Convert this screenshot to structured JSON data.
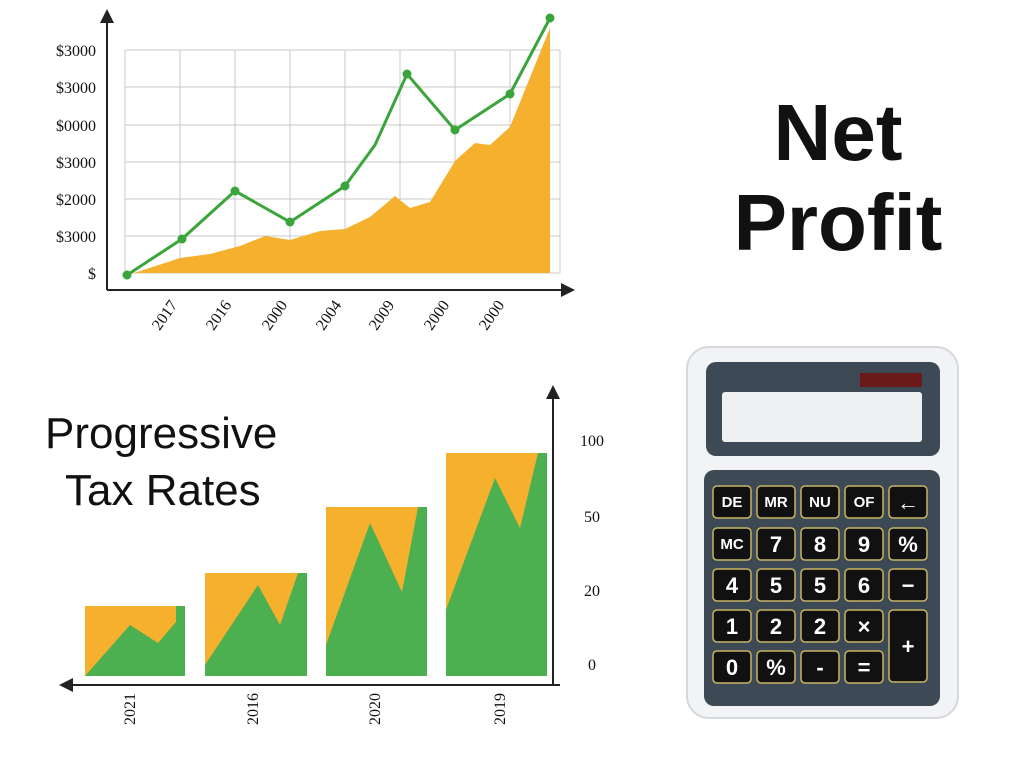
{
  "line_chart": {
    "y_labels": [
      "$3000",
      "$3000",
      "$0000",
      "$3000",
      "$2000",
      "$3000",
      "$"
    ],
    "x_labels": [
      "2017",
      "2016",
      "2000",
      "2004",
      "2009",
      "2000",
      "2000"
    ]
  },
  "net_profit": {
    "lines": [
      "Net",
      "Profit"
    ]
  },
  "tax_chart": {
    "title_lines": [
      "Progressive",
      "Tax Rates"
    ],
    "y_labels": [
      "100",
      "50",
      "20",
      "0"
    ],
    "x_labels": [
      "2021",
      "2016",
      "2020",
      "2019"
    ]
  },
  "calculator": {
    "keys": [
      [
        "DE",
        "MR",
        "NU",
        "OF",
        "←"
      ],
      [
        "MC",
        "7",
        "8",
        "9",
        "%"
      ],
      [
        "4",
        "5",
        "5",
        "6",
        "−"
      ],
      [
        "1",
        "2",
        "2",
        "×",
        "+"
      ],
      [
        "0",
        "%",
        "-",
        "="
      ]
    ]
  }
}
